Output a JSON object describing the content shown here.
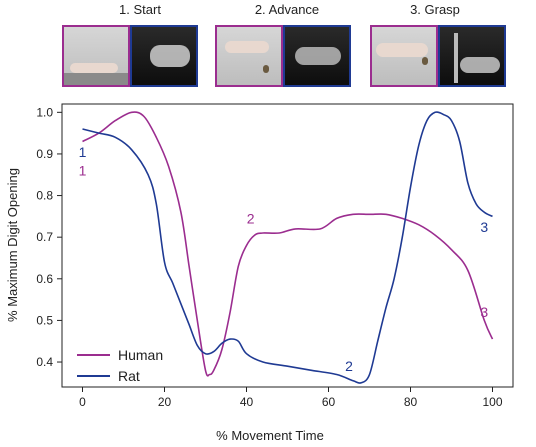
{
  "panels": [
    {
      "label": "1. Start"
    },
    {
      "label": "2. Advance"
    },
    {
      "label": "3. Grasp"
    }
  ],
  "colors": {
    "human": "#9b2d8f",
    "rat": "#1f3a93",
    "frame": "#222222"
  },
  "chart_data": {
    "type": "line",
    "xlabel": "% Movement Time",
    "ylabel": "% Maximum Digit Opening",
    "xlim": [
      -5,
      105
    ],
    "ylim": [
      0.34,
      1.02
    ],
    "xticks": [
      0,
      20,
      40,
      60,
      80,
      100
    ],
    "yticks": [
      0.4,
      0.5,
      0.6,
      0.7,
      0.8,
      0.9,
      1.0
    ],
    "grid": false,
    "legend": "bottom-left",
    "series": [
      {
        "name": "Human",
        "color": "#9b2d8f",
        "x": [
          0,
          4,
          8,
          12,
          15,
          18,
          21,
          24,
          26,
          28,
          30,
          31,
          32,
          34,
          36,
          38,
          40,
          42,
          44,
          48,
          52,
          58,
          62,
          66,
          70,
          74,
          78,
          82,
          86,
          90,
          94,
          98,
          100
        ],
        "y": [
          0.93,
          0.95,
          0.98,
          1.0,
          0.99,
          0.94,
          0.87,
          0.76,
          0.63,
          0.5,
          0.38,
          0.37,
          0.38,
          0.43,
          0.52,
          0.63,
          0.68,
          0.705,
          0.71,
          0.71,
          0.72,
          0.72,
          0.745,
          0.755,
          0.755,
          0.755,
          0.745,
          0.73,
          0.705,
          0.67,
          0.62,
          0.5,
          0.455
        ]
      },
      {
        "name": "Rat",
        "color": "#1f3a93",
        "x": [
          0,
          4,
          8,
          12,
          16,
          18,
          20,
          22,
          24,
          26,
          28,
          30,
          32,
          34,
          36,
          38,
          40,
          44,
          50,
          56,
          62,
          66,
          68,
          70,
          72,
          74,
          76,
          78,
          80,
          82,
          84,
          86,
          88,
          90,
          92,
          94,
          96,
          98,
          100
        ],
        "y": [
          0.96,
          0.95,
          0.94,
          0.91,
          0.85,
          0.78,
          0.64,
          0.59,
          0.54,
          0.49,
          0.44,
          0.42,
          0.425,
          0.445,
          0.455,
          0.45,
          0.42,
          0.4,
          0.39,
          0.38,
          0.37,
          0.355,
          0.35,
          0.37,
          0.45,
          0.53,
          0.6,
          0.7,
          0.82,
          0.92,
          0.98,
          1.0,
          0.995,
          0.98,
          0.93,
          0.83,
          0.78,
          0.76,
          0.75
        ]
      }
    ],
    "annotations": [
      {
        "text": "1",
        "series": "Rat",
        "x": 0,
        "y": 0.905
      },
      {
        "text": "1",
        "series": "Human",
        "x": 0,
        "y": 0.86
      },
      {
        "text": "2",
        "series": "Human",
        "x": 41,
        "y": 0.745
      },
      {
        "text": "2",
        "series": "Rat",
        "x": 65,
        "y": 0.39
      },
      {
        "text": "3",
        "series": "Rat",
        "x": 98,
        "y": 0.725
      },
      {
        "text": "3",
        "series": "Human",
        "x": 98,
        "y": 0.52
      }
    ]
  }
}
